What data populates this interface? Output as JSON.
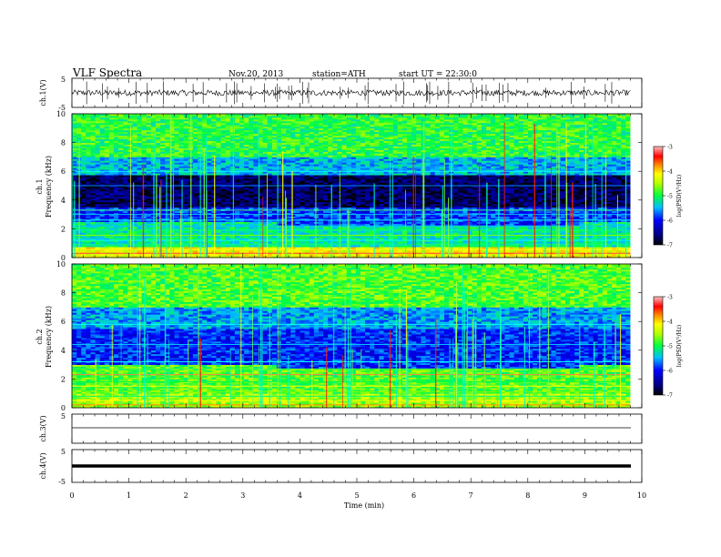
{
  "header": {
    "title": "VLF Spectra",
    "date": "Nov.20, 2013",
    "station": "station=ATH",
    "start": "start UT = 22:30:0"
  },
  "chart_data": [
    {
      "type": "line",
      "id": "ch1-waveform",
      "ylabel": "ch.1(V)",
      "xlim": [
        0,
        10
      ],
      "ylim": [
        -5,
        5
      ],
      "yticks": [
        5,
        -5
      ],
      "data_extent_x": [
        0,
        9.8
      ],
      "baseline": 0.0,
      "note_amplitude_approx": 1.0
    },
    {
      "type": "heatmap",
      "id": "ch1-spectrogram",
      "ylabel_top": "ch.1",
      "ylabel": "Frequency (kHz)",
      "xlim": [
        0,
        10
      ],
      "ylim": [
        0,
        10
      ],
      "yticks": [
        0,
        2,
        4,
        6,
        8,
        10
      ],
      "data_extent_x": [
        0,
        9.8
      ],
      "step_times_min": [
        3.6,
        8.9
      ],
      "colorbar": {
        "label": "log(PSD(V²/Hz)",
        "min": -7,
        "max": -3,
        "ticks": [
          -3,
          -4,
          -5,
          -6,
          -7
        ]
      }
    },
    {
      "type": "heatmap",
      "id": "ch2-spectrogram",
      "ylabel_top": "ch.2",
      "ylabel": "Frequency (kHz)",
      "xlim": [
        0,
        10
      ],
      "ylim": [
        0,
        10
      ],
      "yticks": [
        0,
        2,
        4,
        6,
        8,
        10
      ],
      "data_extent_x": [
        0,
        9.8
      ],
      "step_times_min": [
        3.6,
        8.9
      ],
      "colorbar": {
        "label": "log(PSD(V²/Hz)",
        "min": -7,
        "max": -3,
        "ticks": [
          -3,
          -4,
          -5,
          -6,
          -7
        ]
      }
    },
    {
      "type": "line",
      "id": "ch3-waveform",
      "ylabel": "ch.3(V)",
      "xlim": [
        0,
        10
      ],
      "ylim": [
        -5,
        5
      ],
      "yticks": [
        5
      ],
      "baseline": 0.0,
      "data_extent_x": [
        0,
        9.8
      ]
    },
    {
      "type": "line",
      "id": "ch4-waveform",
      "ylabel": "ch.4(V)",
      "xlim": [
        0,
        10
      ],
      "ylim": [
        -5,
        5
      ],
      "yticks": [
        5,
        -5
      ],
      "baseline": 0.0,
      "data_extent_x": [
        0,
        9.8
      ]
    }
  ],
  "xaxis": {
    "label": "Time (min)",
    "ticks": [
      0,
      1,
      2,
      3,
      4,
      5,
      6,
      7,
      8,
      9,
      10
    ]
  }
}
